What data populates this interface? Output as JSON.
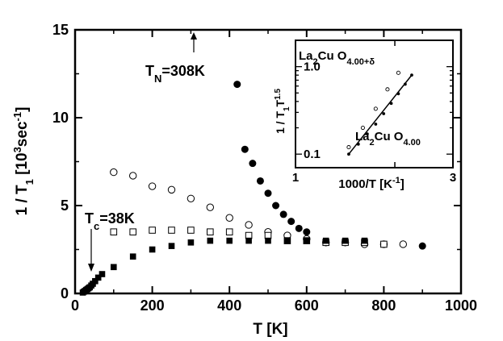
{
  "chart_data": [
    {
      "type": "scatter",
      "xlabel": "T  [K]",
      "ylabel": "1 / T",
      "ylabel_sub": "1",
      "ylabel_unit": " [10",
      "ylabel_unit_sup": "3",
      "ylabel_unit_tail": "sec",
      "ylabel_unit_sup2": "-1",
      "ylabel_close": "]",
      "xlim": [
        0,
        1000
      ],
      "ylim": [
        0,
        15
      ],
      "xticks": [
        0,
        200,
        400,
        600,
        800,
        1000
      ],
      "yticks": [
        0,
        5,
        10,
        15
      ],
      "grid": false,
      "series": [
        {
          "marker": "filled-circle",
          "x": [
            420,
            440,
            460,
            480,
            500,
            520,
            540,
            560,
            580,
            600,
            900
          ],
          "y": [
            11.9,
            8.2,
            7.4,
            6.4,
            5.7,
            5.0,
            4.5,
            4.1,
            3.7,
            3.5,
            2.7
          ]
        },
        {
          "marker": "open-circle",
          "x": [
            100,
            150,
            200,
            250,
            300,
            350,
            400,
            450,
            500,
            550,
            600,
            650,
            700,
            750,
            800,
            850
          ],
          "y": [
            6.9,
            6.7,
            6.1,
            5.9,
            5.4,
            4.9,
            4.3,
            3.9,
            3.5,
            3.3,
            3.1,
            2.9,
            2.9,
            2.8,
            2.8,
            2.8
          ]
        },
        {
          "marker": "open-square",
          "x": [
            100,
            150,
            200,
            250,
            300,
            350,
            400,
            450,
            500,
            550,
            600,
            650,
            700,
            750,
            800
          ],
          "y": [
            3.5,
            3.5,
            3.6,
            3.6,
            3.6,
            3.5,
            3.5,
            3.3,
            3.3,
            3.0,
            3.0,
            2.9,
            2.9,
            2.9,
            2.8
          ]
        },
        {
          "marker": "filled-square",
          "x": [
            20,
            23,
            26,
            29,
            32,
            35,
            38,
            42,
            46,
            52,
            60,
            70,
            100,
            150,
            200,
            250,
            300,
            350,
            400,
            450,
            500,
            550,
            600,
            650,
            700,
            750
          ],
          "y": [
            0.05,
            0.1,
            0.15,
            0.2,
            0.25,
            0.3,
            0.35,
            0.45,
            0.55,
            0.7,
            0.9,
            1.1,
            1.5,
            2.1,
            2.5,
            2.7,
            2.9,
            3.0,
            3.0,
            3.0,
            3.0,
            3.0,
            3.0,
            3.0,
            3.0,
            3.0
          ]
        }
      ],
      "annotations": [
        {
          "prefix": "T",
          "sub": "N",
          "suffix": "=308K",
          "x": 308,
          "y": 13.8
        },
        {
          "prefix": "T",
          "sub": "c",
          "suffix": "=38K",
          "x": 38,
          "y": 4.6
        }
      ]
    },
    {
      "type": "scatter",
      "xscale": "log",
      "yscale": "log",
      "xlabel": "1000/T  [K",
      "xlabel_sup": "-1",
      "xlabel_close": "]",
      "ylabel": "1 / T",
      "ylabel_sub": "1",
      "ylabel_tail": "T",
      "ylabel_sup": "1.5",
      "xlim": [
        1,
        3
      ],
      "ylim": [
        0.07,
        2.0
      ],
      "xtick_labels": [
        {
          "value": 1,
          "label": "1"
        },
        {
          "value": 3,
          "label": "3"
        }
      ],
      "ytick_labels": [
        {
          "value": 0.1,
          "label": "0.1"
        },
        {
          "value": 1.0,
          "label": "1.0"
        }
      ],
      "series": [
        {
          "name_parts": [
            "La",
            "2",
            "Cu O",
            "4.00+δ"
          ],
          "marker": "open-circle",
          "x": [
            1.45,
            1.6,
            1.75,
            1.9,
            2.05
          ],
          "y": [
            0.12,
            0.2,
            0.33,
            0.55,
            0.85
          ]
        },
        {
          "name_parts": [
            "La",
            "2",
            "Cu O",
            "4.00"
          ],
          "marker": "filled-circle-line",
          "x": [
            1.45,
            1.55,
            1.65,
            1.75,
            1.85,
            1.95,
            2.05,
            2.15,
            2.25
          ],
          "y": [
            0.1,
            0.13,
            0.17,
            0.22,
            0.29,
            0.38,
            0.49,
            0.63,
            0.8
          ]
        }
      ]
    }
  ]
}
